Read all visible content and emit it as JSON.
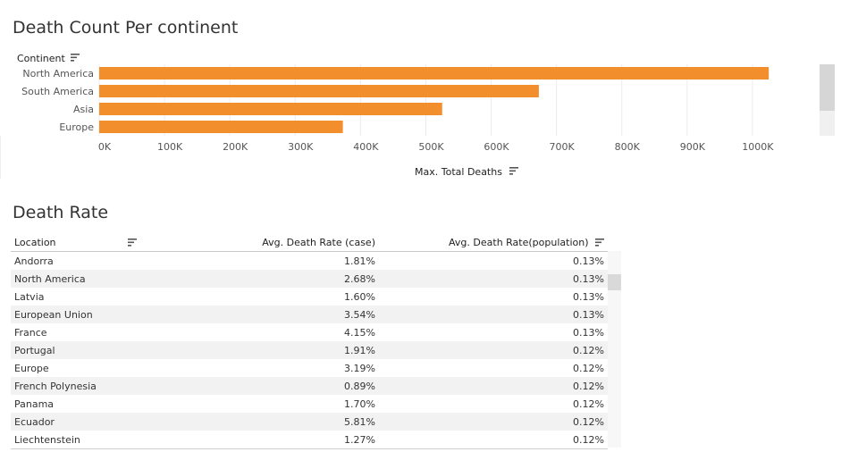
{
  "chart_title": "Death Count Per continent",
  "table_title": "Death Rate",
  "chart_data": [
    {
      "type": "bar",
      "orientation": "horizontal",
      "title": "Death Count Per continent",
      "row_header": "Continent",
      "categories": [
        "North America",
        "South America",
        "Asia",
        "Europe"
      ],
      "values": [
        1025000,
        673000,
        525000,
        373000
      ],
      "xlabel": "Max. Total Deaths",
      "xlim": [
        0,
        1100000
      ],
      "x_ticks": [
        0,
        100000,
        200000,
        300000,
        400000,
        500000,
        600000,
        700000,
        800000,
        900000,
        1000000
      ],
      "x_tick_labels": [
        "0K",
        "100K",
        "200K",
        "300K",
        "400K",
        "500K",
        "600K",
        "700K",
        "800K",
        "900K",
        "1000K"
      ],
      "bar_color": "#F28E2B",
      "grid": true,
      "sort_icon": "sort-descending-icon"
    },
    {
      "type": "table",
      "title": "Death Rate",
      "columns": [
        "Location",
        "Avg. Death Rate (case)",
        "Avg. Death Rate(population)"
      ],
      "rows": [
        [
          "Andorra",
          "1.81%",
          "0.13%"
        ],
        [
          "North America",
          "2.68%",
          "0.13%"
        ],
        [
          "Latvia",
          "1.60%",
          "0.13%"
        ],
        [
          "European Union",
          "3.54%",
          "0.13%"
        ],
        [
          "France",
          "4.15%",
          "0.13%"
        ],
        [
          "Portugal",
          "1.91%",
          "0.12%"
        ],
        [
          "Europe",
          "3.19%",
          "0.12%"
        ],
        [
          "French Polynesia",
          "0.89%",
          "0.12%"
        ],
        [
          "Panama",
          "1.70%",
          "0.12%"
        ],
        [
          "Ecuador",
          "5.81%",
          "0.12%"
        ],
        [
          "Liechtenstein",
          "1.27%",
          "0.12%"
        ]
      ]
    }
  ],
  "colors": {
    "bar": "#F28E2B",
    "zebra": "#F2F2F2",
    "title": "#333333"
  }
}
